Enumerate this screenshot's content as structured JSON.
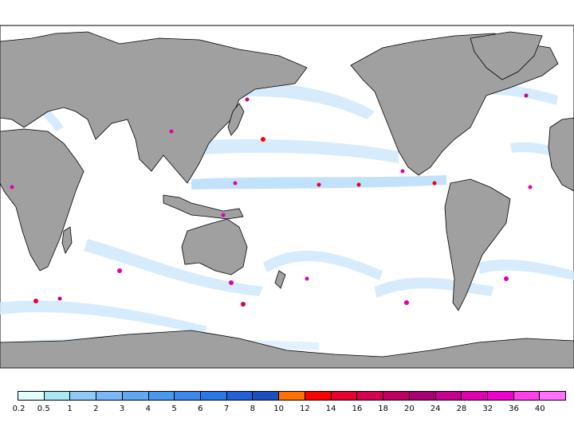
{
  "map": {
    "projection": "equirectangular, Pacific-centered (central meridian 180°)",
    "land_color": "#a0a0a0",
    "ocean_color": "#ffffff",
    "border_color": "#000000"
  },
  "legend": {
    "labels": [
      "0.2",
      "0.5",
      "1",
      "2",
      "3",
      "4",
      "5",
      "6",
      "7",
      "8",
      "10",
      "12",
      "14",
      "16",
      "18",
      "20",
      "24",
      "28",
      "32",
      "36",
      "40"
    ],
    "colors": [
      "#e0ffff",
      "#a8e8f0",
      "#90c8f8",
      "#78b8f8",
      "#60a8f0",
      "#4898f0",
      "#3c88ec",
      "#2878e8",
      "#2060d8",
      "#1850c0",
      "#ff7000",
      "#ff0000",
      "#e80030",
      "#d80050",
      "#c00060",
      "#a80070",
      "#c80090",
      "#e000b0",
      "#f000d0",
      "#ff40e8",
      "#ff70ff"
    ]
  }
}
